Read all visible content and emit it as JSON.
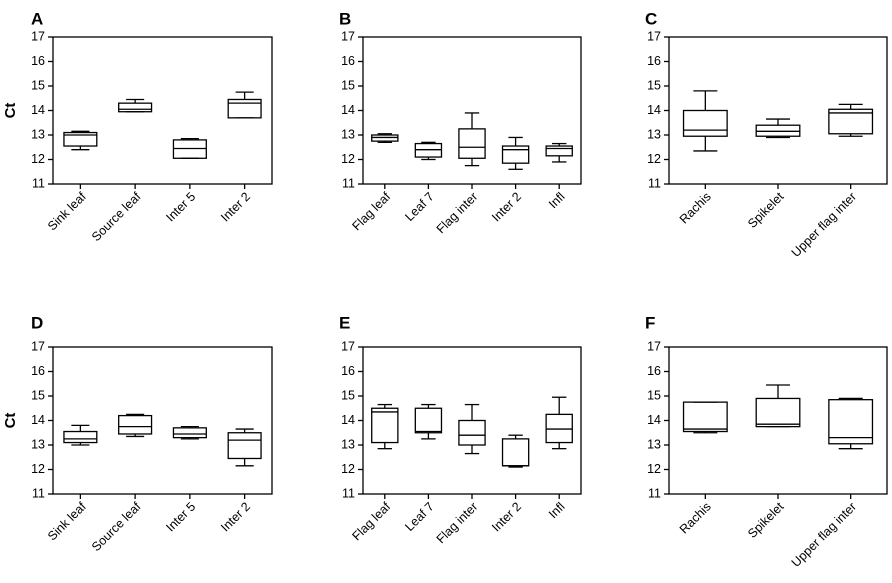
{
  "chart_data": [
    {
      "panel": "A",
      "type": "box",
      "ylabel": "Ct",
      "ylim": [
        11,
        17
      ],
      "yticks": [
        "11",
        "12",
        "13",
        "14",
        "15",
        "16",
        "17"
      ],
      "categories": [
        "Sink leaf",
        "Source leaf",
        "Inter 5",
        "Inter 2"
      ],
      "boxes": [
        {
          "min": 12.4,
          "q1": 12.55,
          "median": 13.0,
          "q3": 13.1,
          "max": 13.15
        },
        {
          "min": 13.95,
          "q1": 13.95,
          "median": 14.05,
          "q3": 14.3,
          "max": 14.45
        },
        {
          "min": 12.05,
          "q1": 12.05,
          "median": 12.45,
          "q3": 12.8,
          "max": 12.85
        },
        {
          "min": 13.7,
          "q1": 13.7,
          "median": 14.3,
          "q3": 14.45,
          "max": 14.75
        }
      ]
    },
    {
      "panel": "B",
      "type": "box",
      "ylabel": "",
      "ylim": [
        11,
        17
      ],
      "yticks": [
        "11",
        "12",
        "13",
        "14",
        "15",
        "16",
        "17"
      ],
      "categories": [
        "Flag leaf",
        "Leaf 7",
        "Flag inter",
        "Inter 2",
        "Infl"
      ],
      "boxes": [
        {
          "min": 12.7,
          "q1": 12.75,
          "median": 12.9,
          "q3": 13.0,
          "max": 13.05
        },
        {
          "min": 12.0,
          "q1": 12.1,
          "median": 12.4,
          "q3": 12.65,
          "max": 12.7
        },
        {
          "min": 11.75,
          "q1": 12.05,
          "median": 12.5,
          "q3": 13.25,
          "max": 13.9
        },
        {
          "min": 11.6,
          "q1": 11.85,
          "median": 12.4,
          "q3": 12.55,
          "max": 12.9
        },
        {
          "min": 11.9,
          "q1": 12.15,
          "median": 12.45,
          "q3": 12.55,
          "max": 12.65
        }
      ]
    },
    {
      "panel": "C",
      "type": "box",
      "ylabel": "",
      "ylim": [
        11,
        17
      ],
      "yticks": [
        "11",
        "12",
        "13",
        "14",
        "15",
        "16",
        "17"
      ],
      "categories": [
        "Rachis",
        "Spikelet",
        "Upper flag inter"
      ],
      "boxes": [
        {
          "min": 12.35,
          "q1": 12.95,
          "median": 13.2,
          "q3": 14.0,
          "max": 14.8
        },
        {
          "min": 12.9,
          "q1": 12.95,
          "median": 13.15,
          "q3": 13.4,
          "max": 13.65
        },
        {
          "min": 12.95,
          "q1": 13.05,
          "median": 13.9,
          "q3": 14.05,
          "max": 14.25
        }
      ]
    },
    {
      "panel": "D",
      "type": "box",
      "ylabel": "Ct",
      "ylim": [
        11,
        17
      ],
      "yticks": [
        "11",
        "12",
        "13",
        "14",
        "15",
        "16",
        "17"
      ],
      "categories": [
        "Sink leaf",
        "Source leaf",
        "Inter 5",
        "Inter 2"
      ],
      "boxes": [
        {
          "min": 13.0,
          "q1": 13.1,
          "median": 13.25,
          "q3": 13.55,
          "max": 13.8
        },
        {
          "min": 13.35,
          "q1": 13.45,
          "median": 13.75,
          "q3": 14.2,
          "max": 14.25
        },
        {
          "min": 13.25,
          "q1": 13.3,
          "median": 13.45,
          "q3": 13.7,
          "max": 13.75
        },
        {
          "min": 12.15,
          "q1": 12.45,
          "median": 13.2,
          "q3": 13.5,
          "max": 13.65
        }
      ]
    },
    {
      "panel": "E",
      "type": "box",
      "ylabel": "",
      "ylim": [
        11,
        17
      ],
      "yticks": [
        "11",
        "12",
        "13",
        "14",
        "15",
        "16",
        "17"
      ],
      "categories": [
        "Flag leaf",
        "Leaf 7",
        "Flag inter",
        "Inter 2",
        "Infl"
      ],
      "boxes": [
        {
          "min": 12.85,
          "q1": 13.1,
          "median": 14.35,
          "q3": 14.5,
          "max": 14.65
        },
        {
          "min": 13.25,
          "q1": 13.5,
          "median": 13.55,
          "q3": 14.5,
          "max": 14.65
        },
        {
          "min": 12.65,
          "q1": 13.0,
          "median": 13.4,
          "q3": 14.0,
          "max": 14.65
        },
        {
          "min": 12.1,
          "q1": 12.15,
          "median": 12.15,
          "q3": 13.25,
          "max": 13.4
        },
        {
          "min": 12.85,
          "q1": 13.1,
          "median": 13.65,
          "q3": 14.25,
          "max": 14.95
        }
      ]
    },
    {
      "panel": "F",
      "type": "box",
      "ylabel": "",
      "ylim": [
        11,
        17
      ],
      "yticks": [
        "11",
        "12",
        "13",
        "14",
        "15",
        "16",
        "17"
      ],
      "categories": [
        "Rachis",
        "Spikelet",
        "Upper flag inter"
      ],
      "boxes": [
        {
          "min": 13.5,
          "q1": 13.55,
          "median": 13.65,
          "q3": 14.75,
          "max": 14.75
        },
        {
          "min": 13.75,
          "q1": 13.75,
          "median": 13.85,
          "q3": 14.9,
          "max": 15.45
        },
        {
          "min": 12.85,
          "q1": 13.05,
          "median": 13.3,
          "q3": 14.85,
          "max": 14.9
        }
      ]
    }
  ]
}
